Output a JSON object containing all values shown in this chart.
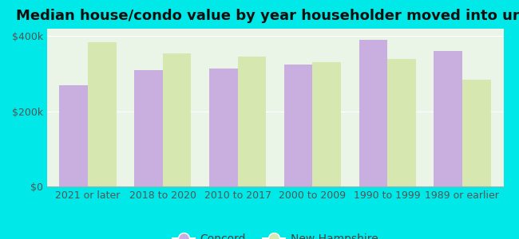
{
  "title": "Median house/condo value by year householder moved into unit",
  "categories": [
    "2021 or later",
    "2018 to 2020",
    "2010 to 2017",
    "2000 to 2009",
    "1990 to 1999",
    "1989 or earlier"
  ],
  "concord_values": [
    270000,
    310000,
    315000,
    325000,
    390000,
    360000
  ],
  "nh_values": [
    385000,
    355000,
    345000,
    330000,
    340000,
    285000
  ],
  "concord_color": "#c9aee0",
  "nh_color": "#d6e8b0",
  "background_color": "#00e8e8",
  "plot_bg_color": "#eaf5e8",
  "ylim": [
    0,
    420000
  ],
  "ytick_labels": [
    "$0",
    "$200k",
    "$400k"
  ],
  "ytick_values": [
    0,
    200000,
    400000
  ],
  "legend_labels": [
    "Concord",
    "New Hampshire"
  ],
  "title_fontsize": 13,
  "tick_fontsize": 9,
  "legend_fontsize": 10
}
